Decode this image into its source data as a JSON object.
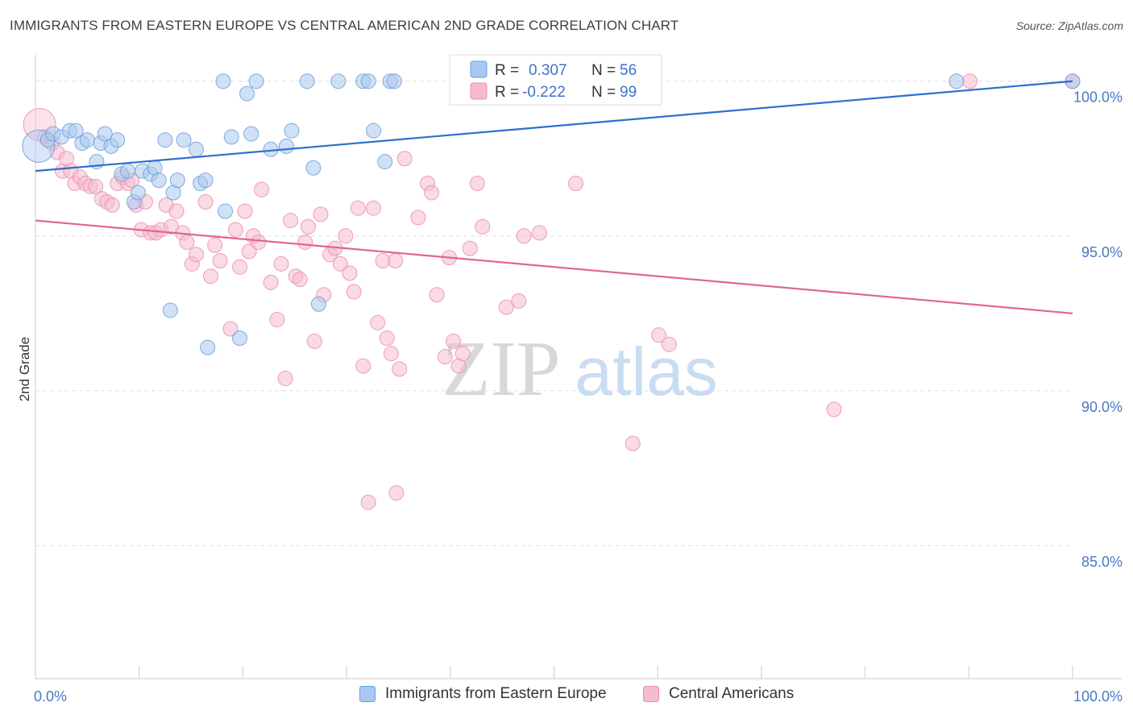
{
  "title": "IMMIGRANTS FROM EASTERN EUROPE VS CENTRAL AMERICAN 2ND GRADE CORRELATION CHART",
  "source": "Source: ZipAtlas.com",
  "watermark": {
    "zip": "ZIP",
    "atlas": "atlas"
  },
  "colors": {
    "blue_fill": "#a9c8ef",
    "blue_stroke": "#6a9ddb",
    "blue_line": "#2f6fcd",
    "pink_fill": "#f6bccd",
    "pink_stroke": "#e98fab",
    "pink_line": "#e0648f",
    "axis_text": "#4a78c2",
    "grid": "#dddddd"
  },
  "legend_top": {
    "rows": [
      {
        "r_label": "R =",
        "r_value": "0.307",
        "n_label": "N =",
        "n_value": "56"
      },
      {
        "r_label": "R =",
        "r_value": "-0.222",
        "n_label": "N =",
        "n_value": "99"
      }
    ]
  },
  "legend_bottom": {
    "items": [
      "Immigrants from Eastern Europe",
      "Central Americans"
    ]
  },
  "chart_data": {
    "type": "scatter",
    "title": "IMMIGRANTS FROM EASTERN EUROPE VS CENTRAL AMERICAN 2ND GRADE CORRELATION CHART",
    "xlabel": "",
    "ylabel": "2nd Grade",
    "xlim": [
      0,
      100
    ],
    "ylim": [
      80.7,
      100.8
    ],
    "x_tick_labels": [
      "0.0%",
      "100.0%"
    ],
    "y_ticks": [
      85,
      90,
      95,
      100
    ],
    "y_tick_labels": [
      "85.0%",
      "90.0%",
      "95.0%",
      "100.0%"
    ],
    "grid": true,
    "legend_position": "top-center",
    "series": [
      {
        "name": "Immigrants from Eastern Europe",
        "color": "#a9c8ef",
        "r": 0.307,
        "n": 56,
        "trend": {
          "x": [
            0,
            100
          ],
          "y": [
            97.1,
            100
          ]
        },
        "points": [
          {
            "x": 0.3,
            "y": 97.9,
            "big": true
          },
          {
            "x": 1.2,
            "y": 98.1
          },
          {
            "x": 1.7,
            "y": 98.3
          },
          {
            "x": 2.5,
            "y": 98.2
          },
          {
            "x": 3.3,
            "y": 98.4
          },
          {
            "x": 3.9,
            "y": 98.4
          },
          {
            "x": 4.5,
            "y": 98.0
          },
          {
            "x": 5.0,
            "y": 98.1
          },
          {
            "x": 5.9,
            "y": 97.4
          },
          {
            "x": 6.3,
            "y": 98.0
          },
          {
            "x": 6.7,
            "y": 98.3
          },
          {
            "x": 7.3,
            "y": 97.9
          },
          {
            "x": 7.9,
            "y": 98.1
          },
          {
            "x": 8.3,
            "y": 97.0
          },
          {
            "x": 8.9,
            "y": 97.1
          },
          {
            "x": 9.5,
            "y": 96.1
          },
          {
            "x": 9.9,
            "y": 96.4
          },
          {
            "x": 10.3,
            "y": 97.1
          },
          {
            "x": 11.1,
            "y": 97.0
          },
          {
            "x": 11.5,
            "y": 97.2
          },
          {
            "x": 11.9,
            "y": 96.8
          },
          {
            "x": 12.5,
            "y": 98.1
          },
          {
            "x": 13.0,
            "y": 92.6
          },
          {
            "x": 13.3,
            "y": 96.4
          },
          {
            "x": 13.7,
            "y": 96.8
          },
          {
            "x": 14.3,
            "y": 98.1
          },
          {
            "x": 15.5,
            "y": 97.8
          },
          {
            "x": 15.9,
            "y": 96.7
          },
          {
            "x": 16.4,
            "y": 96.8
          },
          {
            "x": 16.6,
            "y": 91.4
          },
          {
            "x": 18.1,
            "y": 100
          },
          {
            "x": 18.3,
            "y": 95.8
          },
          {
            "x": 18.9,
            "y": 98.2
          },
          {
            "x": 19.7,
            "y": 91.7
          },
          {
            "x": 20.4,
            "y": 99.6
          },
          {
            "x": 20.8,
            "y": 98.3
          },
          {
            "x": 21.3,
            "y": 100
          },
          {
            "x": 22.7,
            "y": 97.8
          },
          {
            "x": 24.2,
            "y": 97.9
          },
          {
            "x": 24.7,
            "y": 98.4
          },
          {
            "x": 26.2,
            "y": 100
          },
          {
            "x": 26.8,
            "y": 97.2
          },
          {
            "x": 27.3,
            "y": 92.8
          },
          {
            "x": 29.2,
            "y": 100
          },
          {
            "x": 31.6,
            "y": 100
          },
          {
            "x": 32.1,
            "y": 100
          },
          {
            "x": 32.6,
            "y": 98.4
          },
          {
            "x": 33.7,
            "y": 97.4
          },
          {
            "x": 34.2,
            "y": 100
          },
          {
            "x": 34.6,
            "y": 100
          },
          {
            "x": 88.8,
            "y": 100
          },
          {
            "x": 100,
            "y": 100
          }
        ]
      },
      {
        "name": "Central Americans",
        "color": "#f6bccd",
        "r": -0.222,
        "n": 99,
        "trend": {
          "x": [
            0,
            100
          ],
          "y": [
            95.5,
            92.5
          ]
        },
        "points": [
          {
            "x": 0.4,
            "y": 98.6,
            "big": true
          },
          {
            "x": 0.9,
            "y": 98.2
          },
          {
            "x": 1.6,
            "y": 98.0
          },
          {
            "x": 2.1,
            "y": 97.7
          },
          {
            "x": 2.6,
            "y": 97.1
          },
          {
            "x": 3.0,
            "y": 97.5
          },
          {
            "x": 3.4,
            "y": 97.1
          },
          {
            "x": 3.8,
            "y": 96.7
          },
          {
            "x": 4.3,
            "y": 96.9
          },
          {
            "x": 4.8,
            "y": 96.7
          },
          {
            "x": 5.3,
            "y": 96.6
          },
          {
            "x": 5.8,
            "y": 96.6
          },
          {
            "x": 6.4,
            "y": 96.2
          },
          {
            "x": 6.9,
            "y": 96.1
          },
          {
            "x": 7.4,
            "y": 96.0
          },
          {
            "x": 7.9,
            "y": 96.7
          },
          {
            "x": 8.4,
            "y": 96.9
          },
          {
            "x": 8.9,
            "y": 96.7
          },
          {
            "x": 9.3,
            "y": 96.8
          },
          {
            "x": 9.7,
            "y": 96.0
          },
          {
            "x": 10.2,
            "y": 95.2
          },
          {
            "x": 10.6,
            "y": 96.1
          },
          {
            "x": 11.1,
            "y": 95.1
          },
          {
            "x": 11.6,
            "y": 95.1
          },
          {
            "x": 12.1,
            "y": 95.2
          },
          {
            "x": 12.6,
            "y": 96.0
          },
          {
            "x": 13.1,
            "y": 95.3
          },
          {
            "x": 13.6,
            "y": 95.8
          },
          {
            "x": 14.2,
            "y": 95.1
          },
          {
            "x": 14.6,
            "y": 94.8
          },
          {
            "x": 15.1,
            "y": 94.1
          },
          {
            "x": 15.5,
            "y": 94.4
          },
          {
            "x": 16.4,
            "y": 96.1
          },
          {
            "x": 16.9,
            "y": 93.7
          },
          {
            "x": 17.3,
            "y": 94.7
          },
          {
            "x": 17.8,
            "y": 94.2
          },
          {
            "x": 18.8,
            "y": 92.0
          },
          {
            "x": 19.3,
            "y": 95.2
          },
          {
            "x": 19.7,
            "y": 94.0
          },
          {
            "x": 20.2,
            "y": 95.8
          },
          {
            "x": 20.6,
            "y": 94.5
          },
          {
            "x": 21.0,
            "y": 95.0
          },
          {
            "x": 21.5,
            "y": 94.8
          },
          {
            "x": 21.8,
            "y": 96.5
          },
          {
            "x": 22.7,
            "y": 93.5
          },
          {
            "x": 23.3,
            "y": 92.3
          },
          {
            "x": 23.7,
            "y": 94.1
          },
          {
            "x": 24.1,
            "y": 90.4
          },
          {
            "x": 24.6,
            "y": 95.5
          },
          {
            "x": 25.1,
            "y": 93.7
          },
          {
            "x": 25.5,
            "y": 93.6
          },
          {
            "x": 26.0,
            "y": 94.8
          },
          {
            "x": 26.3,
            "y": 95.3
          },
          {
            "x": 26.9,
            "y": 91.6
          },
          {
            "x": 27.5,
            "y": 95.7
          },
          {
            "x": 27.8,
            "y": 93.1
          },
          {
            "x": 28.4,
            "y": 94.4
          },
          {
            "x": 28.9,
            "y": 94.6
          },
          {
            "x": 29.4,
            "y": 94.1
          },
          {
            "x": 29.9,
            "y": 95.0
          },
          {
            "x": 30.3,
            "y": 93.8
          },
          {
            "x": 30.7,
            "y": 93.2
          },
          {
            "x": 31.1,
            "y": 95.9
          },
          {
            "x": 31.6,
            "y": 90.8
          },
          {
            "x": 32.1,
            "y": 86.4
          },
          {
            "x": 32.6,
            "y": 95.9
          },
          {
            "x": 33.0,
            "y": 92.2
          },
          {
            "x": 33.5,
            "y": 94.2
          },
          {
            "x": 33.9,
            "y": 91.7
          },
          {
            "x": 34.3,
            "y": 91.2
          },
          {
            "x": 34.7,
            "y": 94.2
          },
          {
            "x": 35.1,
            "y": 90.7
          },
          {
            "x": 34.8,
            "y": 86.7
          },
          {
            "x": 35.6,
            "y": 97.5
          },
          {
            "x": 36.9,
            "y": 95.6
          },
          {
            "x": 37.8,
            "y": 96.7
          },
          {
            "x": 38.2,
            "y": 96.4
          },
          {
            "x": 38.7,
            "y": 93.1
          },
          {
            "x": 39.5,
            "y": 91.1
          },
          {
            "x": 39.9,
            "y": 94.3
          },
          {
            "x": 40.3,
            "y": 91.6
          },
          {
            "x": 40.8,
            "y": 90.8
          },
          {
            "x": 41.2,
            "y": 91.2
          },
          {
            "x": 41.9,
            "y": 94.6
          },
          {
            "x": 42.6,
            "y": 96.7
          },
          {
            "x": 43.1,
            "y": 95.3
          },
          {
            "x": 45.4,
            "y": 92.7
          },
          {
            "x": 46.6,
            "y": 92.9
          },
          {
            "x": 47.1,
            "y": 95.0
          },
          {
            "x": 48.6,
            "y": 95.1
          },
          {
            "x": 52.1,
            "y": 96.7
          },
          {
            "x": 56.6,
            "y": 100
          },
          {
            "x": 57.6,
            "y": 88.3
          },
          {
            "x": 60.1,
            "y": 91.8
          },
          {
            "x": 61.1,
            "y": 91.5
          },
          {
            "x": 77.0,
            "y": 89.4
          },
          {
            "x": 90.1,
            "y": 100
          },
          {
            "x": 100,
            "y": 100
          }
        ]
      }
    ]
  }
}
